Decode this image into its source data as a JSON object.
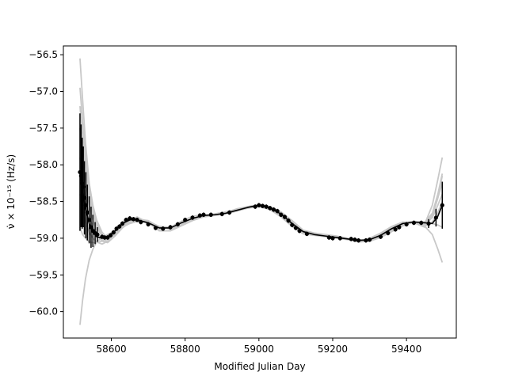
{
  "chart_data": {
    "type": "line",
    "title": "",
    "xlabel": "Modified Julian Day",
    "ylabel": "ν̇ × 10⁻¹⁵ (Hz/s)",
    "xlim": [
      58470,
      59535
    ],
    "ylim": [
      -60.36,
      -56.38
    ],
    "x_ticks": [
      58600,
      58800,
      59000,
      59200,
      59400
    ],
    "y_ticks": [
      -56.5,
      -57.0,
      -57.5,
      -58.0,
      -58.5,
      -59.0,
      -59.5,
      -60.0
    ],
    "y_tick_labels": [
      "−56.5",
      "−57.0",
      "−57.5",
      "−58.0",
      "−58.5",
      "−59.0",
      "−59.5",
      "−60.0"
    ],
    "grid": false,
    "legend": "none",
    "colors": {
      "samples": "#c8c8c8",
      "median": "#000000"
    },
    "series": [
      {
        "role": "posterior-samples",
        "x": [
          58515,
          58522,
          58530,
          58540,
          58550,
          58560,
          58575,
          58590,
          58610,
          58630,
          58650,
          58670,
          58700,
          58730,
          58760,
          58790,
          58820,
          58850,
          58880,
          58910,
          58940,
          58970,
          59000,
          59030,
          59060,
          59090,
          59120,
          59150,
          59180,
          59210,
          59240,
          59270,
          59300,
          59330,
          59360,
          59390,
          59420,
          59450,
          59470,
          59485,
          59497
        ],
        "samples": [
          [
            -56.55,
            -57.1,
            -57.7,
            -58.25,
            -58.55,
            -58.75,
            -58.92,
            -59.0,
            -58.96,
            -58.82,
            -58.74,
            -58.72,
            -58.78,
            -58.86,
            -58.87,
            -58.8,
            -58.73,
            -58.69,
            -58.68,
            -58.66,
            -58.62,
            -58.58,
            -58.55,
            -58.58,
            -58.66,
            -58.78,
            -58.9,
            -58.94,
            -58.96,
            -58.98,
            -59.0,
            -59.03,
            -59.02,
            -58.96,
            -58.87,
            -58.8,
            -58.78,
            -58.8,
            -58.55,
            -58.2,
            -57.9
          ],
          [
            -56.95,
            -57.4,
            -57.9,
            -58.35,
            -58.62,
            -58.8,
            -58.95,
            -59.02,
            -58.92,
            -58.78,
            -58.72,
            -58.74,
            -58.8,
            -58.88,
            -58.85,
            -58.77,
            -58.7,
            -58.68,
            -58.68,
            -58.65,
            -58.6,
            -58.57,
            -58.56,
            -58.6,
            -58.69,
            -58.82,
            -58.93,
            -58.95,
            -58.97,
            -58.99,
            -59.01,
            -59.04,
            -59.0,
            -58.93,
            -58.84,
            -58.78,
            -58.79,
            -58.85,
            -58.7,
            -58.45,
            -58.25
          ],
          [
            -57.2,
            -57.65,
            -58.05,
            -58.45,
            -58.68,
            -58.84,
            -58.98,
            -59.01,
            -58.9,
            -58.8,
            -58.75,
            -58.73,
            -58.77,
            -58.84,
            -58.88,
            -58.82,
            -58.74,
            -58.7,
            -58.67,
            -58.64,
            -58.61,
            -58.57,
            -58.54,
            -58.57,
            -58.64,
            -58.76,
            -58.89,
            -58.93,
            -58.95,
            -58.97,
            -59.0,
            -59.02,
            -59.03,
            -58.98,
            -58.9,
            -58.82,
            -58.77,
            -58.78,
            -58.66,
            -58.4,
            -58.12
          ],
          [
            -57.5,
            -57.9,
            -58.2,
            -58.55,
            -58.75,
            -58.9,
            -59.02,
            -59.04,
            -58.94,
            -58.84,
            -58.76,
            -58.71,
            -58.79,
            -58.9,
            -58.9,
            -58.83,
            -58.76,
            -58.71,
            -58.69,
            -58.67,
            -58.63,
            -58.59,
            -58.57,
            -58.61,
            -58.71,
            -58.84,
            -58.94,
            -58.96,
            -58.98,
            -59.0,
            -59.02,
            -59.05,
            -59.04,
            -58.99,
            -58.91,
            -58.83,
            -58.78,
            -58.82,
            -58.78,
            -58.65,
            -58.5
          ],
          [
            -57.9,
            -58.2,
            -58.45,
            -58.7,
            -58.85,
            -58.95,
            -59.04,
            -59.06,
            -58.97,
            -58.86,
            -58.78,
            -58.74,
            -58.76,
            -58.85,
            -58.87,
            -58.81,
            -58.74,
            -58.7,
            -58.68,
            -58.66,
            -58.62,
            -58.58,
            -58.55,
            -58.59,
            -58.67,
            -58.8,
            -58.91,
            -58.95,
            -58.97,
            -58.99,
            -59.01,
            -59.03,
            -59.01,
            -58.95,
            -58.86,
            -58.79,
            -58.77,
            -58.8,
            -58.72,
            -58.55,
            -58.4
          ],
          [
            -58.4,
            -58.6,
            -58.78,
            -58.92,
            -59.0,
            -59.05,
            -59.08,
            -59.04,
            -58.93,
            -58.83,
            -58.77,
            -58.75,
            -58.78,
            -58.86,
            -58.86,
            -58.8,
            -58.73,
            -58.69,
            -58.68,
            -58.66,
            -58.61,
            -58.58,
            -58.56,
            -58.6,
            -58.68,
            -58.81,
            -58.92,
            -58.95,
            -58.97,
            -58.99,
            -59.01,
            -59.04,
            -59.02,
            -58.96,
            -58.88,
            -58.81,
            -58.78,
            -58.81,
            -58.8,
            -58.82,
            -58.85
          ],
          [
            -58.85,
            -58.95,
            -59.0,
            -59.05,
            -59.06,
            -59.06,
            -59.04,
            -59.0,
            -58.92,
            -58.84,
            -58.78,
            -58.75,
            -58.78,
            -58.85,
            -58.86,
            -58.8,
            -58.74,
            -58.7,
            -58.68,
            -58.66,
            -58.62,
            -58.58,
            -58.55,
            -58.59,
            -58.67,
            -58.8,
            -58.91,
            -58.95,
            -58.97,
            -58.99,
            -59.01,
            -59.03,
            -59.02,
            -58.96,
            -58.87,
            -58.8,
            -58.78,
            -58.84,
            -58.95,
            -59.15,
            -59.33
          ],
          [
            -60.18,
            -59.85,
            -59.55,
            -59.3,
            -59.15,
            -59.05,
            -58.99,
            -58.95,
            -58.9,
            -58.85,
            -58.8,
            -58.77,
            -58.79,
            -58.84,
            -58.85,
            -58.8,
            -58.74,
            -58.7,
            -58.68,
            -58.66,
            -58.62,
            -58.58,
            -58.55,
            -58.59,
            -58.67,
            -58.8,
            -58.91,
            -58.95,
            -58.97,
            -58.99,
            -59.01,
            -59.03,
            -59.02,
            -58.96,
            -58.87,
            -58.8,
            -58.78,
            -58.8,
            -58.68,
            -58.45,
            -58.15
          ]
        ]
      },
      {
        "role": "median",
        "x": [
          58515,
          58522,
          58530,
          58540,
          58550,
          58560,
          58575,
          58590,
          58610,
          58630,
          58650,
          58670,
          58700,
          58730,
          58760,
          58790,
          58820,
          58850,
          58880,
          58910,
          58940,
          58970,
          59000,
          59030,
          59060,
          59090,
          59120,
          59150,
          59180,
          59210,
          59240,
          59270,
          59300,
          59330,
          59360,
          59390,
          59420,
          59450,
          59470,
          59485,
          59497
        ],
        "y": [
          -58.1,
          -58.35,
          -58.6,
          -58.8,
          -58.92,
          -58.98,
          -59.0,
          -58.98,
          -58.9,
          -58.8,
          -58.75,
          -58.75,
          -58.79,
          -58.86,
          -58.86,
          -58.79,
          -58.73,
          -58.69,
          -58.68,
          -58.66,
          -58.62,
          -58.58,
          -58.55,
          -58.59,
          -58.67,
          -58.8,
          -58.91,
          -58.95,
          -58.97,
          -58.99,
          -59.01,
          -59.03,
          -59.02,
          -58.96,
          -58.87,
          -58.8,
          -58.78,
          -58.79,
          -58.8,
          -58.7,
          -58.55
        ]
      },
      {
        "role": "measurements",
        "x": [
          58515,
          58518,
          58521,
          58524,
          58527,
          58531,
          58535,
          58540,
          58545,
          58550,
          58556,
          58562,
          58575,
          58582,
          58590,
          58598,
          58606,
          58614,
          58622,
          58630,
          58640,
          58650,
          58660,
          58670,
          58680,
          58700,
          58720,
          58740,
          58760,
          58780,
          58800,
          58820,
          58840,
          58850,
          58870,
          58900,
          58920,
          58990,
          59000,
          59010,
          59020,
          59030,
          59040,
          59050,
          59060,
          59070,
          59080,
          59090,
          59100,
          59110,
          59130,
          59190,
          59200,
          59220,
          59250,
          59260,
          59270,
          59290,
          59300,
          59330,
          59350,
          59370,
          59380,
          59400,
          59420,
          59440,
          59460,
          59480,
          59497
        ],
        "y": [
          -58.1,
          -58.15,
          -58.25,
          -58.3,
          -58.45,
          -58.55,
          -58.65,
          -58.75,
          -58.85,
          -58.9,
          -58.93,
          -58.95,
          -58.98,
          -58.99,
          -58.99,
          -58.96,
          -58.92,
          -58.87,
          -58.84,
          -58.8,
          -58.75,
          -58.73,
          -58.74,
          -58.75,
          -58.78,
          -58.81,
          -58.86,
          -58.87,
          -58.85,
          -58.81,
          -58.75,
          -58.72,
          -58.69,
          -58.68,
          -58.68,
          -58.67,
          -58.65,
          -58.57,
          -58.55,
          -58.56,
          -58.57,
          -58.59,
          -58.61,
          -58.63,
          -58.68,
          -58.71,
          -58.76,
          -58.82,
          -58.86,
          -58.9,
          -58.94,
          -58.99,
          -59.0,
          -59.0,
          -59.01,
          -59.02,
          -59.03,
          -59.03,
          -59.02,
          -58.98,
          -58.93,
          -58.88,
          -58.85,
          -58.81,
          -58.79,
          -58.79,
          -58.8,
          -58.72,
          -58.55
        ],
        "yerr": [
          0.8,
          0.7,
          0.62,
          0.55,
          0.5,
          0.45,
          0.38,
          0.32,
          0.28,
          0.22,
          0.15,
          0.1,
          0.03,
          0.03,
          0.03,
          0.03,
          0.03,
          0.03,
          0.03,
          0.03,
          0.03,
          0.03,
          0.03,
          0.03,
          0.03,
          0.03,
          0.03,
          0.03,
          0.03,
          0.03,
          0.03,
          0.03,
          0.03,
          0.03,
          0.03,
          0.03,
          0.03,
          0.03,
          0.03,
          0.03,
          0.03,
          0.03,
          0.03,
          0.03,
          0.03,
          0.03,
          0.03,
          0.03,
          0.03,
          0.03,
          0.03,
          0.03,
          0.03,
          0.03,
          0.03,
          0.03,
          0.03,
          0.03,
          0.03,
          0.03,
          0.03,
          0.03,
          0.03,
          0.03,
          0.03,
          0.03,
          0.06,
          0.12,
          0.32
        ]
      }
    ]
  }
}
